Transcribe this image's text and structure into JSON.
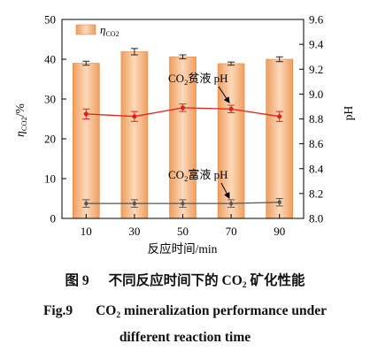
{
  "chart_data": {
    "type": "bar",
    "x": [
      10,
      30,
      50,
      70,
      90
    ],
    "xlim": [
      0,
      100
    ],
    "xlabel": "反应时间/min",
    "ylabel": {
      "symbol": "η",
      "sub": "CO2",
      "unit": "/%"
    },
    "ylim": [
      0,
      50
    ],
    "yticks": [
      "0",
      "10",
      "20",
      "30",
      "40",
      "50"
    ],
    "y2label": "pH",
    "y2lim": [
      8.0,
      9.6
    ],
    "y2ticks": [
      "8.0",
      "8.2",
      "8.4",
      "8.6",
      "8.8",
      "9.0",
      "9.2",
      "9.4",
      "9.6"
    ],
    "grid": false,
    "legend": {
      "position": "top-left"
    },
    "series": [
      {
        "name": {
          "symbol": "η",
          "sub": "CO2"
        },
        "type": "bar",
        "axis": "left",
        "values": [
          39.0,
          41.9,
          40.6,
          38.9,
          40.0
        ],
        "errors": [
          0.5,
          0.8,
          0.5,
          0.4,
          0.6
        ],
        "color": "#ee9d5e"
      },
      {
        "name": {
          "pre": "CO",
          "sub": "2",
          "post": "贫液 pH"
        },
        "type": "line",
        "axis": "right",
        "values": [
          8.84,
          8.82,
          8.89,
          8.88,
          8.82
        ],
        "errors": [
          0.04,
          0.04,
          0.03,
          0.03,
          0.04
        ],
        "color": "#e3211c"
      },
      {
        "name": {
          "pre": "CO",
          "sub": "2",
          "post": "富液 pH"
        },
        "type": "line",
        "axis": "right",
        "values": [
          8.12,
          8.12,
          8.12,
          8.12,
          8.13
        ],
        "errors": [
          0.03,
          0.03,
          0.03,
          0.03,
          0.03
        ],
        "color": "#555555"
      }
    ]
  },
  "caption": {
    "cn": {
      "label": "图 9",
      "pre": "不同反应时间下的 CO",
      "sub": "2",
      "post": " 矿化性能"
    },
    "en": {
      "label": "Fig.9",
      "pre": "CO",
      "sub": "2",
      "line1_post": " mineralization performance under",
      "line2": "different reaction time"
    }
  }
}
